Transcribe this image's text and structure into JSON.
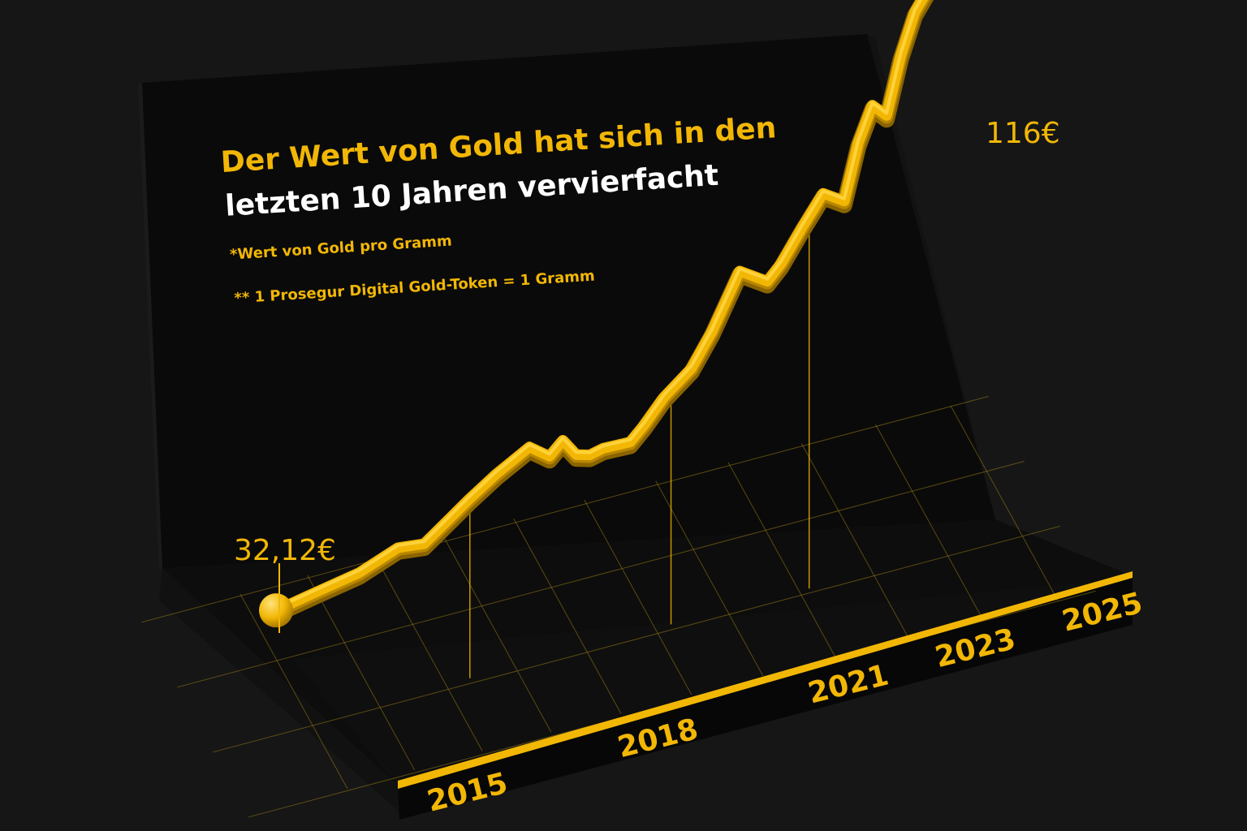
{
  "colors": {
    "background": "#161616",
    "board": "#0a0a0a",
    "gold": "#f2b705",
    "gold_light": "#ffd23a",
    "gold_dark": "#b88700",
    "title_white": "#ffffff",
    "grid": "#9a7d16"
  },
  "chart_data": {
    "type": "line",
    "title_line1": "Der Wert von Gold hat sich in den",
    "title_line2": "letzten 10 Jahren vervierfacht",
    "footnote1": "*Wert von Gold pro Gramm",
    "footnote2": "** 1 Prosegur Digital Gold-Token = 1 Gramm",
    "x_ticks": [
      "2015",
      "2018",
      "2021",
      "2023",
      "2025"
    ],
    "start_label": "32,12€",
    "end_label": "116€",
    "xlim": [
      2015,
      2025.5
    ],
    "ylim": [
      20,
      125
    ],
    "series": [
      {
        "x": [
          2015.0,
          2015.6,
          2016.3,
          2016.9,
          2017.3,
          2017.7,
          2018.0,
          2018.4,
          2018.9,
          2019.2,
          2019.4,
          2019.6,
          2019.8,
          2020.0,
          2020.4,
          2020.6,
          2020.9,
          2021.3,
          2021.6,
          2022.0,
          2022.4,
          2022.6,
          2022.9,
          2023.2,
          2023.5,
          2023.7,
          2023.9,
          2024.1,
          2024.3,
          2024.5,
          2024.8,
          2025.0
        ],
        "y": [
          32.12,
          33.5,
          35,
          38,
          37,
          41,
          44,
          47.5,
          51,
          47.5,
          50,
          46,
          45,
          45.5,
          45,
          47.5,
          52,
          56,
          62,
          72,
          68,
          70.5,
          76,
          81,
          78,
          88,
          94,
          91,
          101,
          108,
          113,
          116
        ]
      }
    ]
  }
}
